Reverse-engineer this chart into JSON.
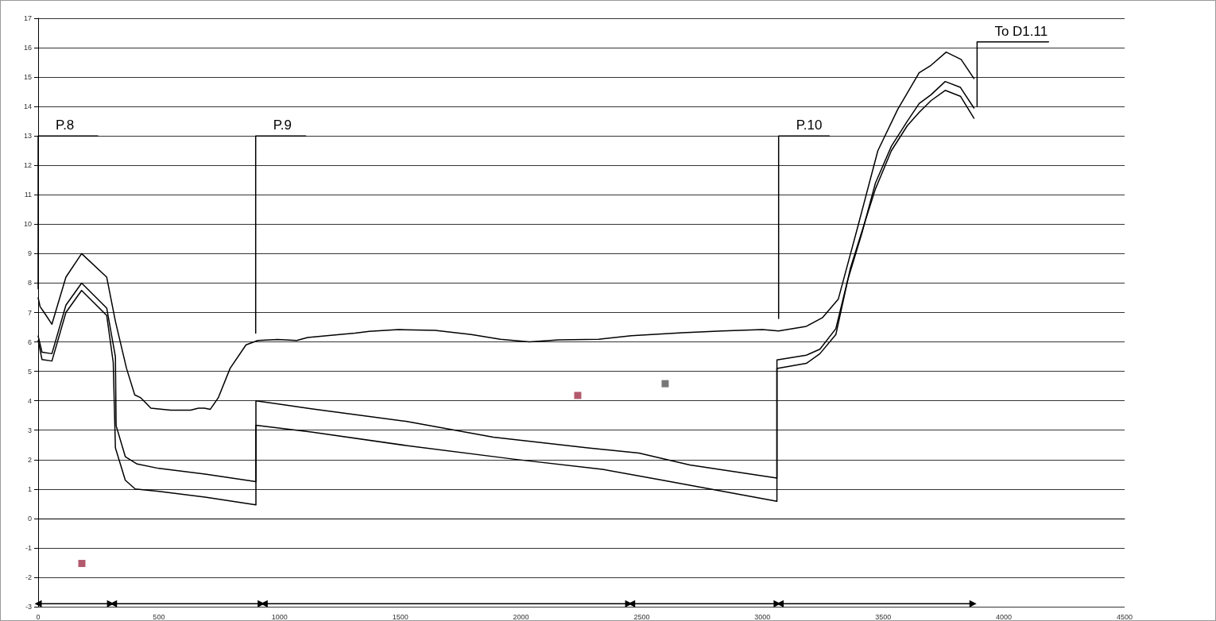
{
  "chart_data": {
    "type": "line",
    "xlim": [
      0,
      4500
    ],
    "xticks": [
      0,
      500,
      1000,
      1500,
      2000,
      2500,
      3000,
      3500,
      4000,
      4500
    ],
    "ylim": [
      -3,
      17
    ],
    "yticks": [
      -3,
      -2,
      -1,
      0,
      1,
      2,
      3,
      4,
      5,
      6,
      7,
      8,
      9,
      10,
      11,
      12,
      13,
      14,
      15,
      16,
      17
    ],
    "grid": "y",
    "legend": false,
    "marker": "none",
    "line_style": "solid",
    "series": [
      {
        "color": "#000000",
        "x": [
          0,
          8,
          25,
          57,
          115,
          180,
          284,
          320,
          366,
          400,
          425,
          467,
          549,
          631,
          664,
          689,
          713,
          746,
          795,
          861,
          910,
          992,
          1071,
          1116,
          1222,
          1312,
          1372,
          1493,
          1644,
          1794,
          1915,
          2035,
          2156,
          2322,
          2457,
          2668,
          2834,
          3000,
          3067,
          3182,
          3248,
          3314,
          3396,
          3478,
          3560,
          3649,
          3698,
          3761,
          3823,
          3876
        ],
        "values": [
          7.5,
          7.2,
          7.0,
          6.6,
          8.2,
          9.0,
          8.2,
          6.7,
          5.1,
          4.2,
          4.1,
          3.75,
          3.68,
          3.68,
          3.75,
          3.75,
          3.71,
          4.1,
          5.1,
          5.9,
          6.05,
          6.08,
          6.05,
          6.15,
          6.23,
          6.3,
          6.36,
          6.42,
          6.39,
          6.25,
          6.09,
          6.0,
          6.07,
          6.09,
          6.21,
          6.31,
          6.37,
          6.42,
          6.37,
          6.53,
          6.82,
          7.45,
          9.95,
          12.5,
          13.9,
          15.15,
          15.4,
          15.85,
          15.6,
          14.95
        ]
      },
      {
        "color": "#000000",
        "x": [
          0,
          16,
          57,
          115,
          180,
          284,
          320,
          323,
          361,
          410,
          500,
          697,
          902,
          902,
          1131,
          1523,
          1885,
          2277,
          2488,
          2699,
          3060,
          3060,
          3182,
          3238,
          3304,
          3353,
          3412,
          3468,
          3534,
          3600,
          3649,
          3698,
          3757,
          3820,
          3876
        ],
        "values": [
          6.2,
          5.65,
          5.6,
          7.25,
          8.0,
          7.15,
          5.5,
          3.15,
          2.1,
          1.85,
          1.7,
          1.5,
          1.25,
          4.0,
          3.73,
          3.3,
          2.76,
          2.4,
          2.22,
          1.82,
          1.37,
          5.39,
          5.55,
          5.75,
          6.45,
          8.1,
          9.7,
          11.4,
          12.65,
          13.5,
          14.1,
          14.4,
          14.85,
          14.65,
          13.95
        ]
      },
      {
        "color": "#000000",
        "x": [
          0,
          16,
          57,
          115,
          180,
          284,
          311,
          320,
          361,
          402,
          500,
          697,
          902,
          902,
          1131,
          1523,
          1975,
          2337,
          2578,
          3060,
          3060,
          3182,
          3238,
          3304,
          3364,
          3429,
          3468,
          3534,
          3600,
          3649,
          3698,
          3757,
          3820,
          3876
        ],
        "values": [
          6.05,
          5.4,
          5.35,
          7.0,
          7.75,
          6.9,
          5.3,
          2.4,
          1.3,
          1.0,
          0.92,
          0.72,
          0.46,
          3.17,
          2.94,
          2.48,
          2.01,
          1.67,
          1.31,
          0.58,
          5.1,
          5.27,
          5.6,
          6.25,
          8.5,
          10.2,
          11.2,
          12.5,
          13.35,
          13.8,
          14.2,
          14.55,
          14.35,
          13.6
        ]
      },
      {
        "name": "P.8",
        "color": "#000000",
        "x": [
          0,
          0,
          247
        ],
        "values": [
          7.8,
          13,
          13
        ]
      },
      {
        "name": "P.9",
        "color": "#000000",
        "x": [
          901,
          901,
          1108
        ],
        "values": [
          6.3,
          13,
          13
        ]
      },
      {
        "name": "P.10",
        "color": "#000000",
        "x": [
          3067,
          3067,
          3277
        ],
        "values": [
          6.8,
          13,
          13
        ]
      },
      {
        "name": "To D1.11",
        "color": "#000000",
        "x": [
          3889,
          3889,
          4185
        ],
        "values": [
          14.0,
          16.2,
          16.2
        ]
      },
      {
        "type": "scatter",
        "marker": "square",
        "color": "#a0304a",
        "x": [
          181,
          2235
        ],
        "values": [
          -1.53,
          4.18
        ]
      },
      {
        "type": "scatter",
        "marker": "square",
        "color": "#555555",
        "x": [
          2597
        ],
        "values": [
          4.58
        ]
      },
      {
        "marker": "triangle",
        "color": "#000000",
        "x": [
          0,
          300
        ],
        "values": [
          -2.9,
          -2.9
        ]
      },
      {
        "marker": "triangle",
        "color": "#000000",
        "x": [
          312,
          924
        ],
        "values": [
          -2.9,
          -2.9
        ]
      },
      {
        "marker": "triangle",
        "color": "#000000",
        "x": [
          936,
          2446
        ],
        "values": [
          -2.9,
          -2.9
        ]
      },
      {
        "marker": "triangle",
        "color": "#000000",
        "x": [
          2458,
          3061
        ],
        "values": [
          -2.9,
          -2.9
        ]
      },
      {
        "marker": "triangle",
        "color": "#000000",
        "x": [
          3073,
          3872
        ],
        "values": [
          -2.9,
          -2.9
        ]
      }
    ]
  }
}
